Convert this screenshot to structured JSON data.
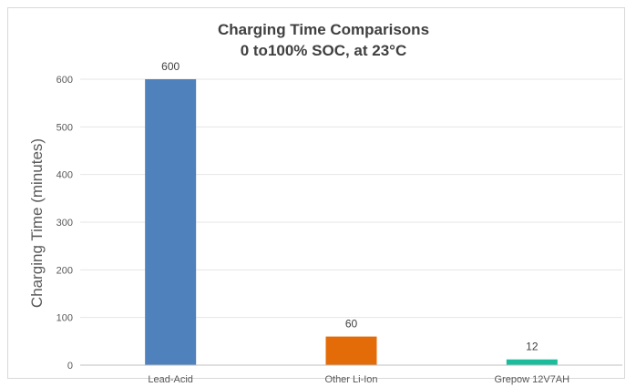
{
  "chart_data": {
    "type": "bar",
    "title_line1": "Charging Time Comparisons",
    "title_line2": "0 to100% SOC, at 23°C",
    "ylabel": "Charging Time (minutes)",
    "xlabel": "",
    "categories": [
      "Lead-Acid",
      "Other Li-Ion",
      "Grepow 12V7AH"
    ],
    "values": [
      600,
      60,
      12
    ],
    "data_labels": [
      "600",
      "60",
      "12"
    ],
    "colors": [
      "#4f81bd",
      "#e36c09",
      "#1abc9c"
    ],
    "ylim": [
      0,
      600
    ],
    "yticks": [
      0,
      100,
      200,
      300,
      400,
      500,
      600
    ],
    "grid": true,
    "legend": "none"
  }
}
